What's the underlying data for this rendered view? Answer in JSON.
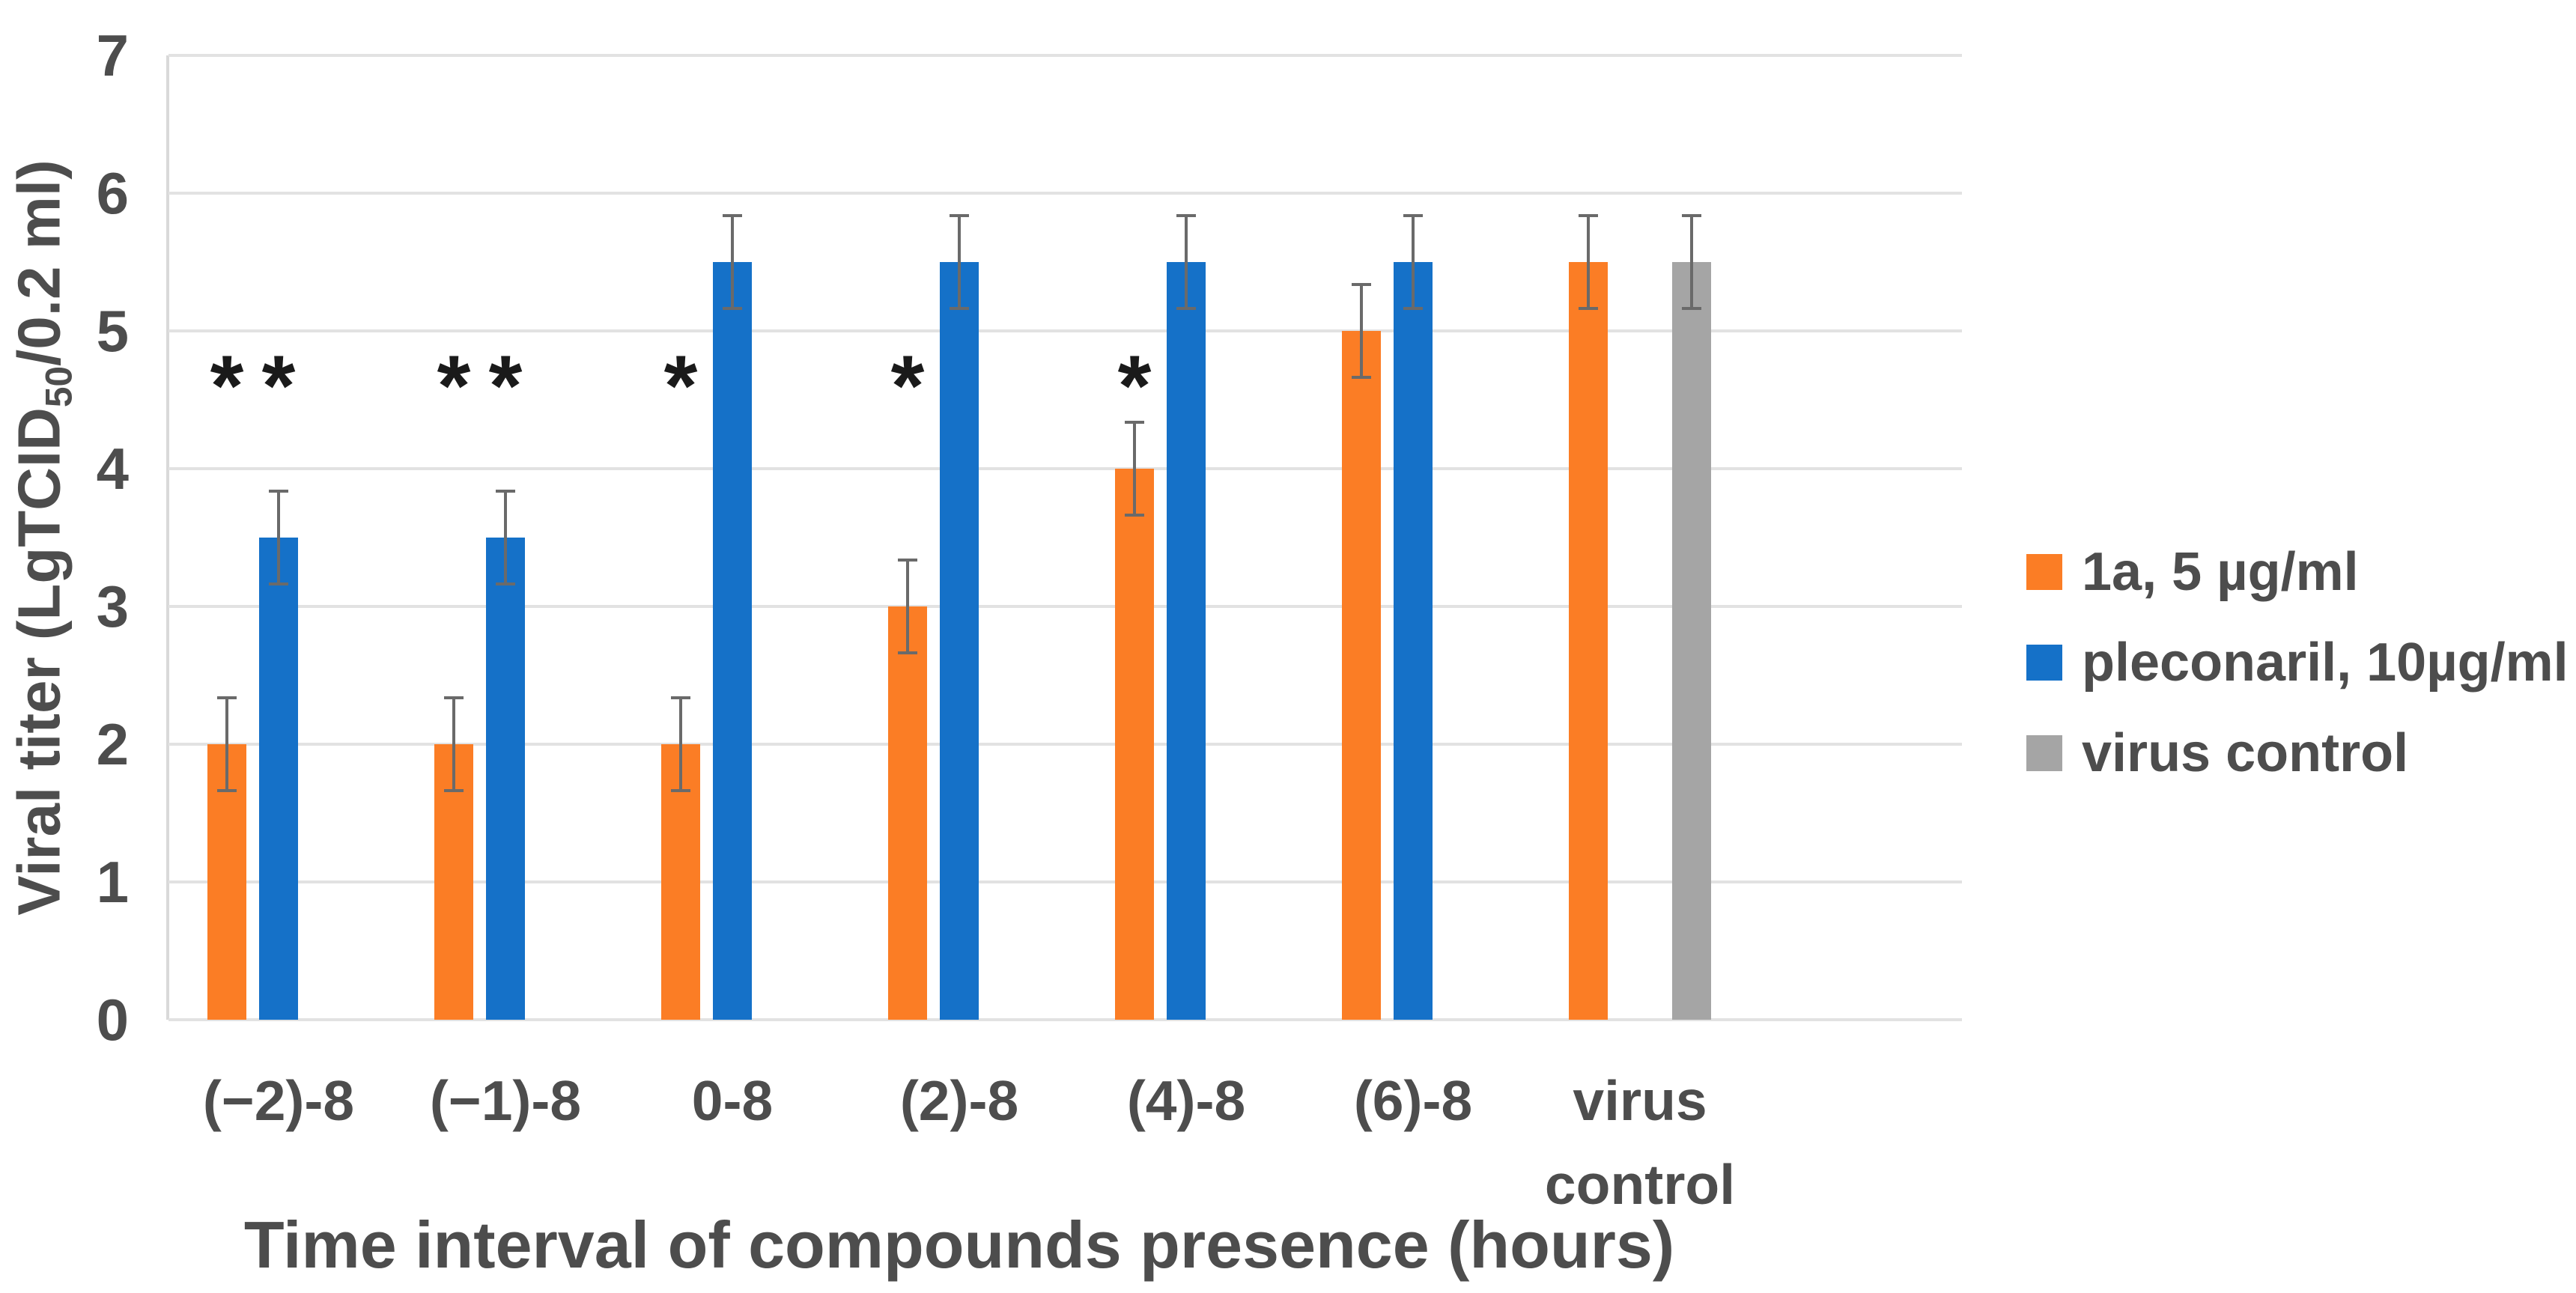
{
  "chart_data": {
    "type": "bar",
    "title": "",
    "xlabel": "Time interval of compounds presence (hours)",
    "ylabel_prefix": "Viral titer (LgTCID",
    "ylabel_subscript": "50",
    "ylabel_suffix": "/0.2 ml)",
    "ylim": [
      0,
      7
    ],
    "yticks": [
      7,
      6,
      5,
      4,
      3,
      2,
      1,
      0
    ],
    "grid": true,
    "legend_position": "right",
    "significance_marker": "*",
    "error_bar_half_width": 0.35,
    "categories": [
      "(−2)-8",
      "(−1)-8",
      "0-8",
      "(2)-8",
      "(4)-8",
      "(6)-8",
      "virus control"
    ],
    "series": [
      {
        "name": "1a, 5 µg/ml",
        "color": "#FB7D25",
        "values": [
          2,
          2,
          2,
          3,
          4,
          5,
          5.5
        ],
        "significant": [
          true,
          true,
          true,
          true,
          true,
          false,
          false
        ]
      },
      {
        "name": "pleconaril, 10µg/ml",
        "color": "#1571C8",
        "values": [
          3.5,
          3.5,
          5.5,
          5.5,
          5.5,
          5.5,
          null
        ],
        "significant": [
          true,
          true,
          false,
          false,
          false,
          false,
          false
        ]
      },
      {
        "name": "virus control",
        "color": "#A5A5A5",
        "values": [
          null,
          null,
          null,
          null,
          null,
          null,
          5.5
        ],
        "significant": [
          false,
          false,
          false,
          false,
          false,
          false,
          false
        ]
      }
    ],
    "colors": {
      "grid": "#E2E2E2",
      "axis_line": "#D9D9D9",
      "error_bar": "#6A6A6A",
      "axis_text": "#4D4D4D",
      "marker": "#1A1A1A"
    }
  }
}
